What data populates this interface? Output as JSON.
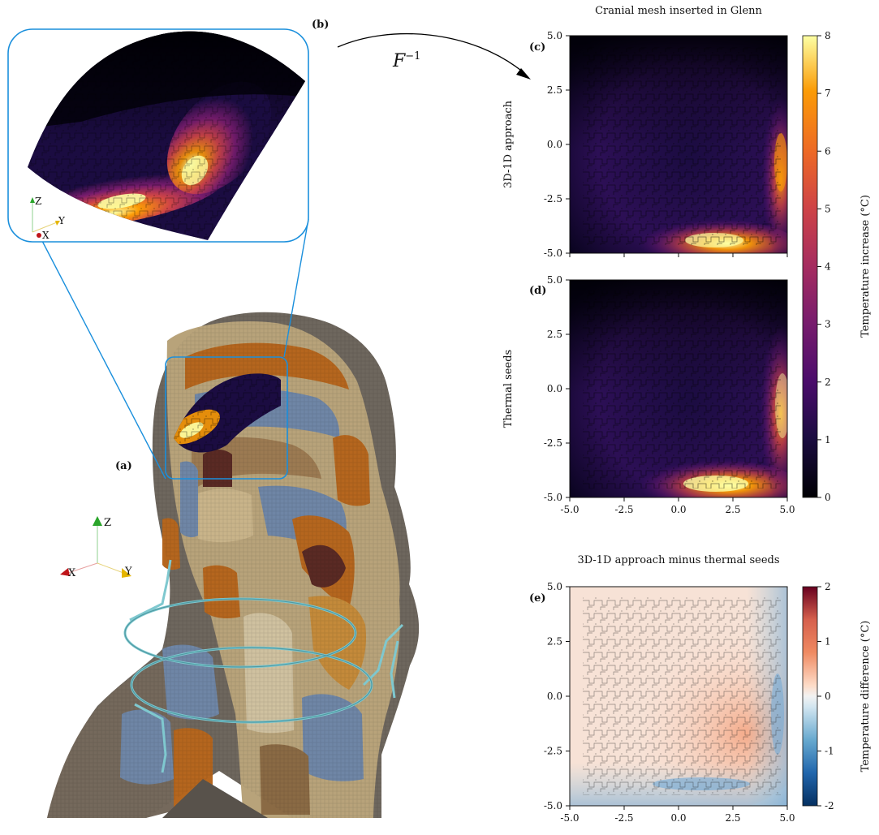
{
  "figure": {
    "panels": {
      "a": "(a)",
      "b": "(b)",
      "c": "(c)",
      "d": "(d)",
      "e": "(e)"
    },
    "mapping_label": "F",
    "mapping_superscript": "−1",
    "axes_3d": {
      "z": "Z",
      "x": "X",
      "y": "Y"
    },
    "colors": {
      "skin": "#6e675e",
      "tissue_tan": "#b8a37a",
      "tissue_orange": "#b5661e",
      "tissue_blue": "#6f86a6",
      "tissue_dark": "#5a2a24",
      "coil": "#7fc8cf",
      "inset_box": "#1a8fdc"
    }
  },
  "chart_data": [
    {
      "type": "heatmap",
      "panel": "(c)",
      "title": "Cranial mesh inserted in Glenn",
      "ylabel": "3D-1D approach",
      "xlim": [
        -5.0,
        5.0
      ],
      "ylim": [
        -5.0,
        5.0
      ],
      "yticks": [
        "5.0",
        "2.5",
        "0.0",
        "-2.5",
        "-5.0"
      ],
      "colormap": "inferno",
      "peak_temperature": 7.5
    },
    {
      "type": "heatmap",
      "panel": "(d)",
      "ylabel": "Thermal seeds",
      "xlim": [
        -5.0,
        5.0
      ],
      "ylim": [
        -5.0,
        5.0
      ],
      "yticks": [
        "5.0",
        "2.5",
        "0.0",
        "-2.5",
        "-5.0"
      ],
      "xticks": [
        "-5.0",
        "-2.5",
        "0.0",
        "2.5",
        "5.0"
      ],
      "colormap": "inferno",
      "peak_temperature": 7.8
    },
    {
      "type": "colorbar",
      "label": "Temperature increase (°C)",
      "range": [
        0,
        8
      ],
      "ticks": [
        "8",
        "7",
        "6",
        "5",
        "4",
        "3",
        "2",
        "1",
        "0"
      ]
    },
    {
      "type": "heatmap",
      "panel": "(e)",
      "title": "3D-1D approach minus thermal seeds",
      "xlim": [
        -5.0,
        5.0
      ],
      "ylim": [
        -5.0,
        5.0
      ],
      "yticks": [
        "5.0",
        "2.5",
        "0.0",
        "-2.5",
        "-5.0"
      ],
      "xticks": [
        "-5.0",
        "-2.5",
        "0.0",
        "2.5",
        "5.0"
      ],
      "colormap": "RdBu_r"
    },
    {
      "type": "colorbar",
      "label": "Temperature difference (°C)",
      "range": [
        -2,
        2
      ],
      "ticks": [
        "2",
        "1",
        "0",
        "-1",
        "-2"
      ]
    }
  ]
}
